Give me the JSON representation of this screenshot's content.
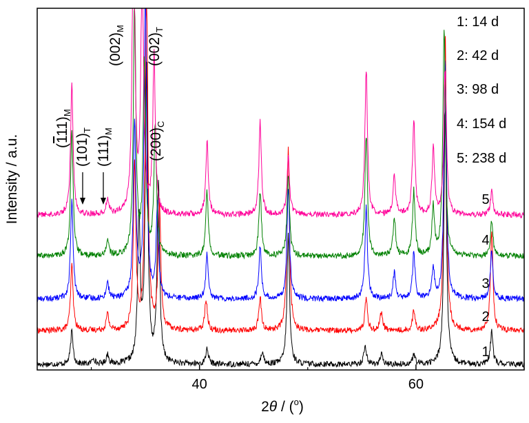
{
  "chart_data": {
    "type": "line",
    "xlabel": {
      "prefix": "2",
      "theta": "θ",
      "rest": " / (",
      "degree": "o",
      "close": ")"
    },
    "ylabel": "Intensity / a.u.",
    "xlim": [
      25,
      70
    ],
    "x_ticks": [
      40,
      60
    ],
    "y_ticks": "none",
    "grid": false,
    "legend_position": "top-right",
    "legend": [
      "1: 14 d",
      "2: 42 d",
      "3: 98 d",
      "4: 154 d",
      "5: 238 d"
    ],
    "series": [
      {
        "name": "1",
        "label": "1",
        "color": "#000000",
        "offset": 0,
        "peaks": [
          [
            28.2,
            0.1
          ],
          [
            30.2,
            0.02
          ],
          [
            31.5,
            0.03
          ],
          [
            34.4,
            0.45
          ],
          [
            35.1,
            0.95
          ],
          [
            36.2,
            0.55
          ],
          [
            40.7,
            0.05
          ],
          [
            45.8,
            0.04
          ],
          [
            48.2,
            0.4
          ],
          [
            55.3,
            0.06
          ],
          [
            56.8,
            0.03
          ],
          [
            59.8,
            0.03
          ],
          [
            62.7,
            0.78
          ],
          [
            67.0,
            0.1
          ]
        ]
      },
      {
        "name": "2",
        "label": "2",
        "color": "#ff0000",
        "offset": 1,
        "peaks": [
          [
            28.2,
            0.2
          ],
          [
            31.5,
            0.05
          ],
          [
            34.0,
            0.5
          ],
          [
            35.1,
            1.1
          ],
          [
            36.3,
            0.4
          ],
          [
            40.6,
            0.1
          ],
          [
            45.6,
            0.1
          ],
          [
            48.2,
            0.55
          ],
          [
            55.4,
            0.1
          ],
          [
            56.8,
            0.06
          ],
          [
            59.8,
            0.06
          ],
          [
            62.7,
            0.9
          ],
          [
            67.0,
            0.3
          ]
        ]
      },
      {
        "name": "3",
        "label": "3",
        "color": "#0000ff",
        "offset": 2,
        "peaks": [
          [
            28.2,
            0.3
          ],
          [
            31.5,
            0.05
          ],
          [
            34.0,
            0.55
          ],
          [
            35.0,
            0.95
          ],
          [
            36.1,
            0.28
          ],
          [
            40.7,
            0.14
          ],
          [
            45.6,
            0.16
          ],
          [
            48.2,
            0.35
          ],
          [
            55.4,
            0.28
          ],
          [
            58.0,
            0.08
          ],
          [
            59.8,
            0.14
          ],
          [
            61.6,
            0.09
          ],
          [
            62.7,
            0.75
          ],
          [
            67.0,
            0.15
          ]
        ]
      },
      {
        "name": "4",
        "label": "4",
        "color": "#008000",
        "offset": 3,
        "peaks": [
          [
            28.2,
            0.38
          ],
          [
            31.5,
            0.05
          ],
          [
            34.0,
            0.78
          ],
          [
            34.9,
            0.6
          ],
          [
            35.9,
            0.4
          ],
          [
            40.7,
            0.2
          ],
          [
            45.6,
            0.2
          ],
          [
            48.2,
            0.25
          ],
          [
            55.4,
            0.38
          ],
          [
            58.0,
            0.12
          ],
          [
            59.8,
            0.2
          ],
          [
            61.6,
            0.15
          ],
          [
            62.6,
            0.7
          ],
          [
            67.0,
            0.11
          ]
        ]
      },
      {
        "name": "5",
        "label": "5",
        "color": "#ff0099",
        "offset": 4,
        "peaks": [
          [
            28.2,
            0.4
          ],
          [
            31.5,
            0.05
          ],
          [
            33.9,
            1.0
          ],
          [
            34.7,
            0.8
          ],
          [
            35.8,
            0.48
          ],
          [
            40.7,
            0.22
          ],
          [
            45.6,
            0.28
          ],
          [
            48.2,
            0.18
          ],
          [
            55.4,
            0.45
          ],
          [
            58.0,
            0.12
          ],
          [
            59.8,
            0.3
          ],
          [
            61.6,
            0.2
          ],
          [
            62.7,
            0.45
          ],
          [
            67.0,
            0.07
          ]
        ]
      }
    ],
    "annotations": [
      {
        "id": "m-111bar",
        "base": "(",
        "over": "1",
        "rest": "11)",
        "sub": "M"
      },
      {
        "id": "t-101",
        "base": "(101)",
        "sub": "T"
      },
      {
        "id": "m-111",
        "base": "(111)",
        "sub": "M"
      },
      {
        "id": "m-002",
        "base": "(002)",
        "sub": "M"
      },
      {
        "id": "t-002",
        "base": "(002)",
        "sub": "T"
      },
      {
        "id": "c-200",
        "base": "(200)",
        "sub": "C"
      }
    ]
  }
}
